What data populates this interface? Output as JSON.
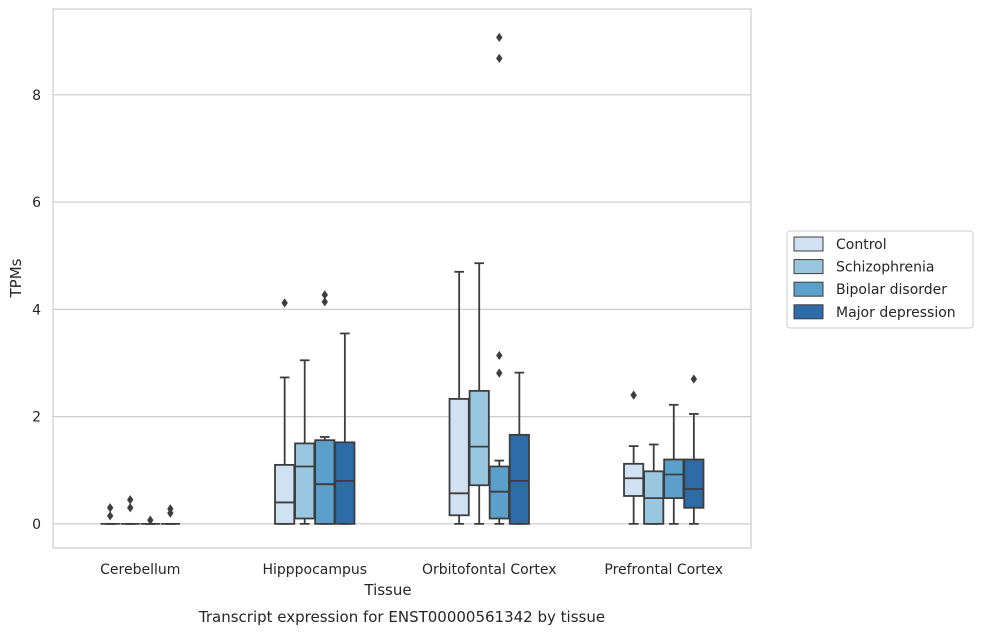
{
  "chart_data": {
    "type": "box",
    "caption": "Transcript expression for ENST00000561342 by tissue",
    "xlabel": "Tissue",
    "ylabel": "TPMs",
    "ylim": [
      -0.45,
      9.6
    ],
    "yticks": [
      0,
      2,
      4,
      6,
      8
    ],
    "grid": "horizontal",
    "legend_position": "right",
    "categories": [
      "Cerebellum",
      "Hipppocampus",
      "Orbitofontal Cortex",
      "Prefrontal Cortex"
    ],
    "series": [
      {
        "name": "Control",
        "color": "#cfe1f2",
        "boxes": [
          {
            "q1": 0,
            "median": 0,
            "q3": 0,
            "whislo": 0,
            "whishi": 0,
            "fliers": [
              0.15,
              0.3
            ]
          },
          {
            "q1": 0,
            "median": 0.4,
            "q3": 1.1,
            "whislo": 0,
            "whishi": 2.73,
            "fliers": [
              4.12
            ]
          },
          {
            "q1": 0.16,
            "median": 0.57,
            "q3": 2.33,
            "whislo": 0,
            "whishi": 4.7,
            "fliers": []
          },
          {
            "q1": 0.52,
            "median": 0.85,
            "q3": 1.12,
            "whislo": 0,
            "whishi": 1.45,
            "fliers": [
              2.4
            ]
          }
        ]
      },
      {
        "name": "Schizophrenia",
        "color": "#9ac7e0",
        "boxes": [
          {
            "q1": 0,
            "median": 0,
            "q3": 0,
            "whislo": 0,
            "whishi": 0,
            "fliers": [
              0.3,
              0.45
            ]
          },
          {
            "q1": 0.1,
            "median": 1.07,
            "q3": 1.5,
            "whislo": 0,
            "whishi": 3.05,
            "fliers": []
          },
          {
            "q1": 0.72,
            "median": 1.44,
            "q3": 2.48,
            "whislo": 0,
            "whishi": 4.86,
            "fliers": []
          },
          {
            "q1": 0,
            "median": 0.48,
            "q3": 0.98,
            "whislo": 0,
            "whishi": 1.48,
            "fliers": []
          }
        ]
      },
      {
        "name": "Bipolar disorder",
        "color": "#5b9fcb",
        "boxes": [
          {
            "q1": 0,
            "median": 0,
            "q3": 0,
            "whislo": 0,
            "whishi": 0,
            "fliers": [
              0.07
            ]
          },
          {
            "q1": 0,
            "median": 0.74,
            "q3": 1.56,
            "whislo": 0,
            "whishi": 1.62,
            "fliers": [
              4.14,
              4.27
            ]
          },
          {
            "q1": 0.1,
            "median": 0.6,
            "q3": 1.07,
            "whislo": 0,
            "whishi": 1.18,
            "fliers": [
              2.81,
              3.14,
              8.68,
              9.07
            ]
          },
          {
            "q1": 0.48,
            "median": 0.92,
            "q3": 1.2,
            "whislo": 0,
            "whishi": 2.22,
            "fliers": []
          }
        ]
      },
      {
        "name": "Major depression",
        "color": "#2d6ca8",
        "boxes": [
          {
            "q1": 0,
            "median": 0,
            "q3": 0,
            "whislo": 0,
            "whishi": 0,
            "fliers": [
              0.2,
              0.28
            ]
          },
          {
            "q1": 0,
            "median": 0.8,
            "q3": 1.52,
            "whislo": 0,
            "whishi": 3.55,
            "fliers": []
          },
          {
            "q1": 0,
            "median": 0.8,
            "q3": 1.66,
            "whislo": 0,
            "whishi": 2.82,
            "fliers": []
          },
          {
            "q1": 0.3,
            "median": 0.65,
            "q3": 1.2,
            "whislo": 0,
            "whishi": 2.05,
            "fliers": [
              2.7
            ]
          }
        ]
      }
    ]
  }
}
